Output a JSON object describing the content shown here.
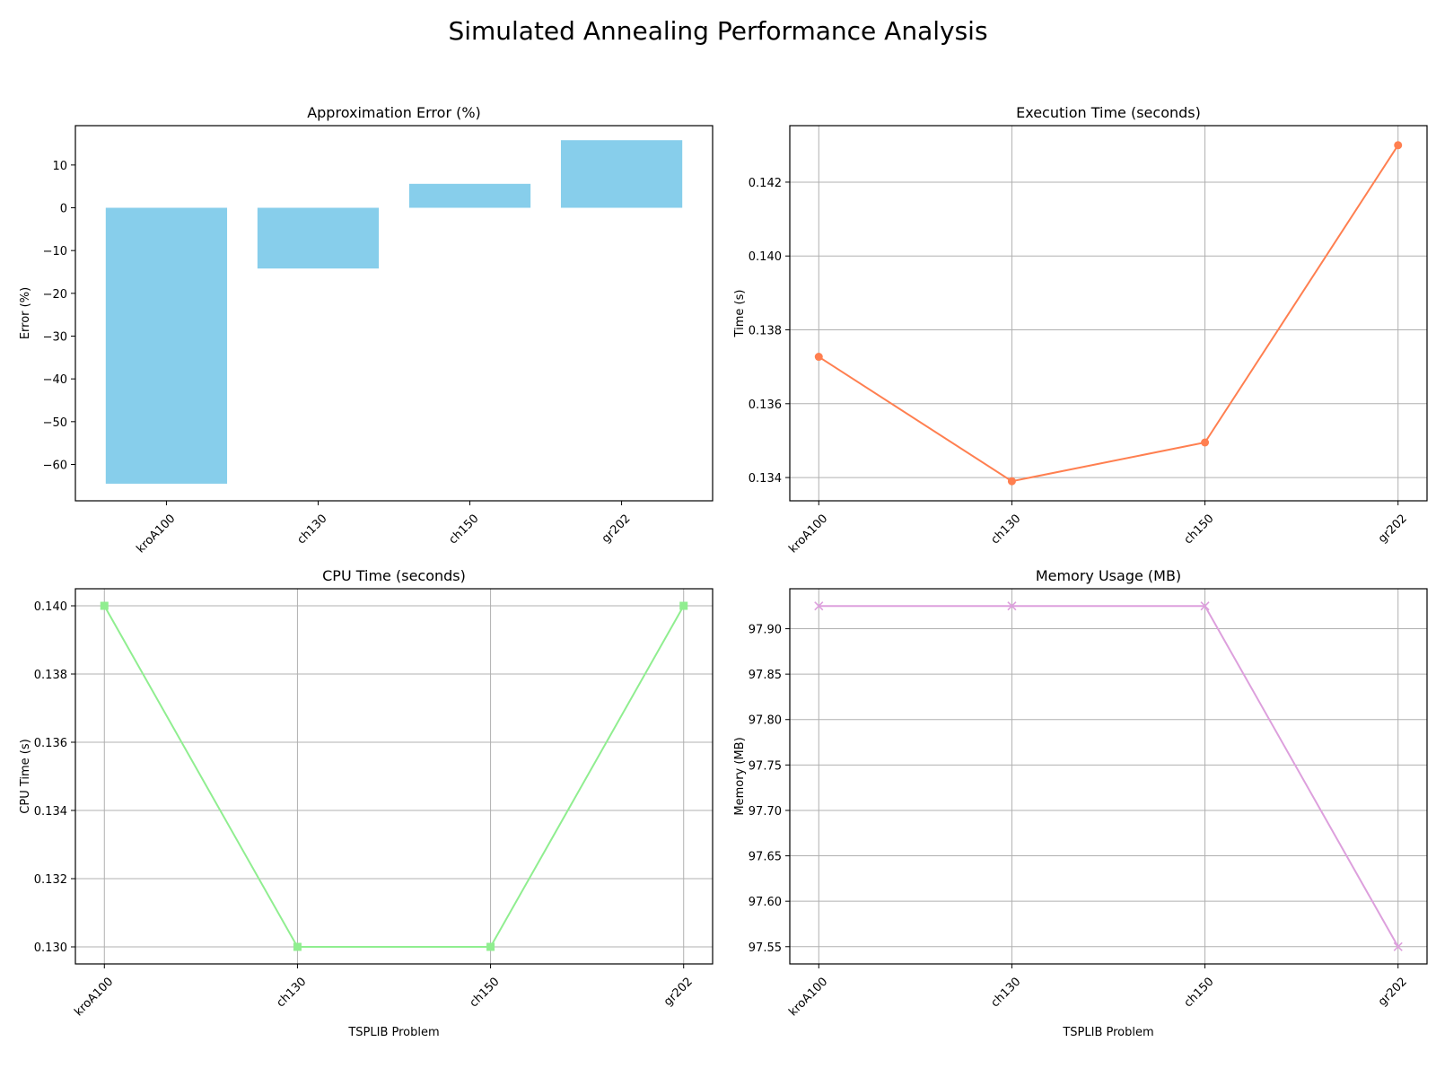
{
  "figure": {
    "title": "Simulated Annealing Performance Analysis"
  },
  "chart_data": [
    {
      "type": "bar",
      "title": "Approximation Error (%)",
      "xlabel": "",
      "ylabel": "Error (%)",
      "categories": [
        "kroA100",
        "ch130",
        "ch150",
        "gr202"
      ],
      "values": [
        -64.5,
        -14.2,
        5.6,
        15.8
      ],
      "ylim": [
        -68.5,
        19.2
      ],
      "yticks": [
        10,
        0,
        -10,
        -20,
        -30,
        -40,
        -50,
        -60
      ],
      "ytick_labels": [
        "10",
        "0",
        "−10",
        "−20",
        "−30",
        "−40",
        "−50",
        "−60"
      ],
      "grid": false,
      "color": "#87ceeb"
    },
    {
      "type": "line",
      "title": "Execution Time (seconds)",
      "xlabel": "",
      "ylabel": "Time (s)",
      "categories": [
        "kroA100",
        "ch130",
        "ch150",
        "gr202"
      ],
      "values": [
        0.13727,
        0.1339,
        0.13495,
        0.143
      ],
      "ylim": [
        0.13337,
        0.14353
      ],
      "yticks": [
        0.134,
        0.136,
        0.138,
        0.14,
        0.142
      ],
      "ytick_labels": [
        "0.134",
        "0.136",
        "0.138",
        "0.140",
        "0.142"
      ],
      "grid": true,
      "marker": "circle",
      "color": "#ff7f50"
    },
    {
      "type": "line",
      "title": "CPU Time (seconds)",
      "xlabel": "TSPLIB Problem",
      "ylabel": "CPU Time (s)",
      "categories": [
        "kroA100",
        "ch130",
        "ch150",
        "gr202"
      ],
      "values": [
        0.14,
        0.13,
        0.13,
        0.14
      ],
      "ylim": [
        0.1295,
        0.1405
      ],
      "yticks": [
        0.13,
        0.132,
        0.134,
        0.136,
        0.138,
        0.14
      ],
      "ytick_labels": [
        "0.130",
        "0.132",
        "0.134",
        "0.136",
        "0.138",
        "0.140"
      ],
      "grid": true,
      "marker": "square",
      "color": "#90ee90"
    },
    {
      "type": "line",
      "title": "Memory Usage (MB)",
      "xlabel": "TSPLIB Problem",
      "ylabel": "Memory (MB)",
      "categories": [
        "kroA100",
        "ch130",
        "ch150",
        "gr202"
      ],
      "values": [
        97.925,
        97.925,
        97.925,
        97.55
      ],
      "ylim": [
        97.531,
        97.944
      ],
      "yticks": [
        97.55,
        97.6,
        97.65,
        97.7,
        97.75,
        97.8,
        97.85,
        97.9
      ],
      "ytick_labels": [
        "97.55",
        "97.60",
        "97.65",
        "97.70",
        "97.75",
        "97.80",
        "97.85",
        "97.90"
      ],
      "grid": true,
      "marker": "x",
      "color": "#dda0dd"
    }
  ]
}
